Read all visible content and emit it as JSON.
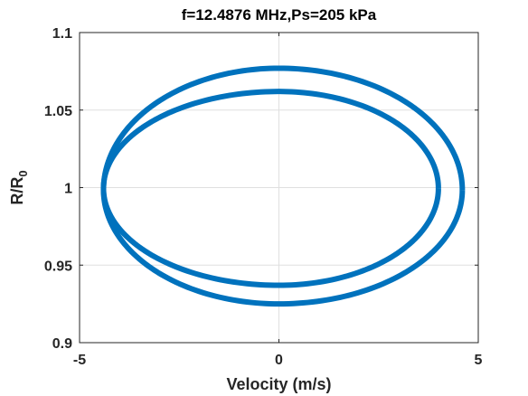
{
  "chart_data": {
    "type": "line",
    "title": "f=12.4876 MHz,Ps=205 kPa",
    "xlabel": "Velocity (m/s)",
    "ylabel_main": "R/R",
    "ylabel_subscript": "0",
    "xlim": [
      -5,
      5
    ],
    "ylim": [
      0.9,
      1.1
    ],
    "xticks": [
      -5,
      0,
      5
    ],
    "xtick_labels": [
      "-5",
      "0",
      "5"
    ],
    "yticks": [
      0.9,
      0.95,
      1.0,
      1.05,
      1.1
    ],
    "ytick_labels": [
      "0.9",
      "0.95",
      "1",
      "1.05",
      "1.1"
    ],
    "grid": true,
    "box": true,
    "series": [
      {
        "color": "#0072bd",
        "loops": [
          {
            "x_min": -4.4,
            "x_max": 4.6,
            "y_min": 0.925,
            "y_max": 1.077,
            "y_center": 0.9985
          },
          {
            "x_min": -4.4,
            "x_max": 4.0,
            "y_min": 0.937,
            "y_max": 1.062,
            "y_center": 0.9995
          }
        ]
      }
    ]
  }
}
